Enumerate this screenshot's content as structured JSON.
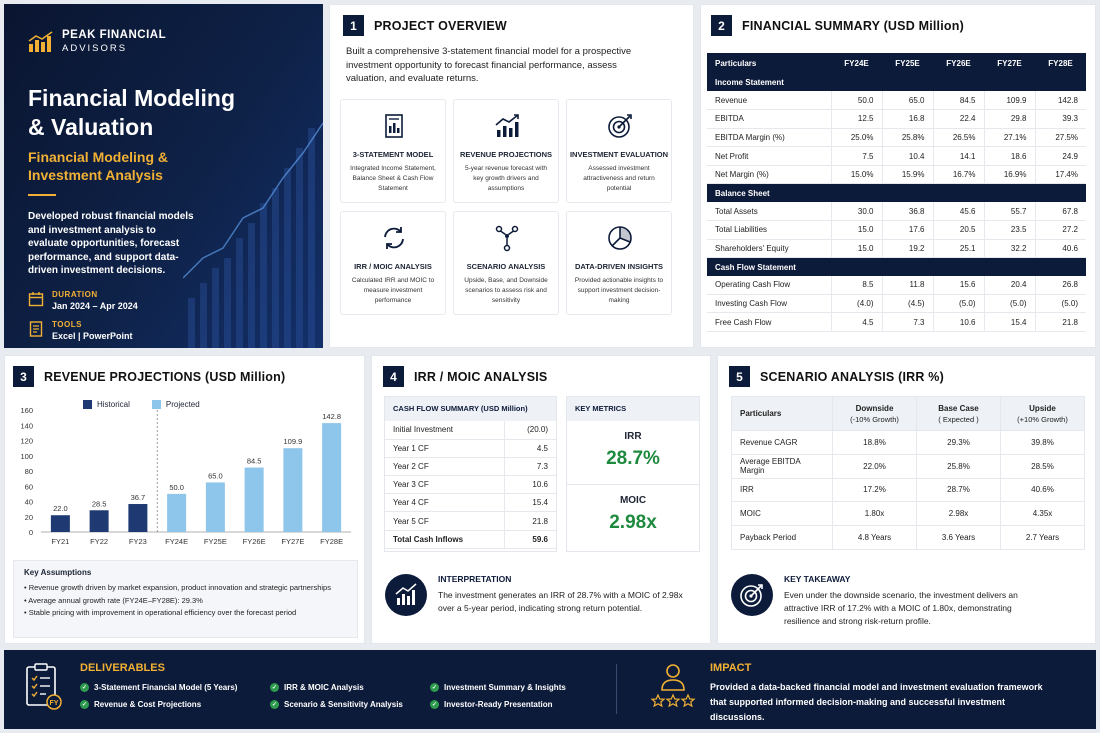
{
  "hero": {
    "brand_line1": "PEAK FINANCIAL",
    "brand_line2": "ADVISORS",
    "title": "Financial Modeling & Valuation",
    "subtitle": "Financial Modeling & Investment Analysis",
    "description": "Developed robust financial models and investment analysis to evaluate opportunities, forecast performance, and support data-driven investment decisions.",
    "duration_label": "DURATION",
    "duration_value": "Jan 2024 – Apr 2024",
    "tools_label": "TOOLS",
    "tools_value": "Excel | PowerPoint"
  },
  "overview": {
    "num": "1",
    "title": "PROJECT OVERVIEW",
    "intro": "Built a comprehensive 3-statement financial model for a prospective investment opportunity to forecast financial performance, assess valuation, and evaluate returns.",
    "cards": [
      {
        "icon": "document-chart-icon",
        "title": "3-STATEMENT MODEL",
        "desc": "Integrated Income Statement, Balance Sheet & Cash Flow Statement"
      },
      {
        "icon": "growth-chart-icon",
        "title": "REVENUE PROJECTIONS",
        "desc": "5-year revenue forecast with key growth drivers and assumptions"
      },
      {
        "icon": "target-icon",
        "title": "INVESTMENT EVALUATION",
        "desc": "Assessed investment attractiveness and return potential"
      },
      {
        "icon": "cycle-arrows-icon",
        "title": "IRR / MOIC ANALYSIS",
        "desc": "Calculated IRR and MOIC to measure investment performance"
      },
      {
        "icon": "branch-icon",
        "title": "SCENARIO ANALYSIS",
        "desc": "Upside, Base, and Downside scenarios to assess risk and sensitivity"
      },
      {
        "icon": "pie-chart-icon",
        "title": "DATA-DRIVEN INSIGHTS",
        "desc": "Provided actionable insights to support investment decision-making"
      }
    ]
  },
  "summary": {
    "num": "2",
    "title": "FINANCIAL SUMMARY (USD Million)",
    "header": [
      "Particulars",
      "FY24E",
      "FY25E",
      "FY26E",
      "FY27E",
      "FY28E"
    ],
    "sections": [
      {
        "name": "Income Statement",
        "rows": [
          [
            "Revenue",
            "50.0",
            "65.0",
            "84.5",
            "109.9",
            "142.8"
          ],
          [
            "EBITDA",
            "12.5",
            "16.8",
            "22.4",
            "29.8",
            "39.3"
          ],
          [
            "EBITDA Margin (%)",
            "25.0%",
            "25.8%",
            "26.5%",
            "27.1%",
            "27.5%"
          ],
          [
            "Net Profit",
            "7.5",
            "10.4",
            "14.1",
            "18.6",
            "24.9"
          ],
          [
            "Net Margin (%)",
            "15.0%",
            "15.9%",
            "16.7%",
            "16.9%",
            "17.4%"
          ]
        ]
      },
      {
        "name": "Balance Sheet",
        "rows": [
          [
            "Total Assets",
            "30.0",
            "36.8",
            "45.6",
            "55.7",
            "67.8"
          ],
          [
            "Total Liabilities",
            "15.0",
            "17.6",
            "20.5",
            "23.5",
            "27.2"
          ],
          [
            "Shareholders' Equity",
            "15.0",
            "19.2",
            "25.1",
            "32.2",
            "40.6"
          ]
        ]
      },
      {
        "name": "Cash Flow Statement",
        "rows": [
          [
            "Operating Cash Flow",
            "8.5",
            "11.8",
            "15.6",
            "20.4",
            "26.8"
          ],
          [
            "Investing Cash Flow",
            "(4.0)",
            "(4.5)",
            "(5.0)",
            "(5.0)",
            "(5.0)"
          ],
          [
            "Free Cash Flow",
            "4.5",
            "7.3",
            "10.6",
            "15.4",
            "21.8"
          ]
        ]
      }
    ]
  },
  "revenue": {
    "num": "3",
    "title": "REVENUE PROJECTIONS (USD Million)",
    "legend_historical": "Historical",
    "legend_projected": "Projected",
    "assumptions_title": "Key Assumptions",
    "assumptions": [
      "Revenue growth driven by market expansion, product innovation and strategic partnerships",
      "Average annual growth rate (FY24E–FY28E): 29.3%",
      "Stable pricing with improvement in operational efficiency over the forecast period"
    ]
  },
  "chart_data": {
    "type": "bar",
    "title": "REVENUE PROJECTIONS (USD Million)",
    "categories": [
      "FY21",
      "FY22",
      "FY23",
      "FY24E",
      "FY25E",
      "FY26E",
      "FY27E",
      "FY28E"
    ],
    "series": [
      {
        "name": "Historical",
        "values": [
          22.0,
          28.5,
          36.7,
          null,
          null,
          null,
          null,
          null
        ],
        "color": "#1f3a73"
      },
      {
        "name": "Projected",
        "values": [
          null,
          null,
          null,
          50.0,
          65.0,
          84.5,
          109.9,
          142.8
        ],
        "color": "#8ec5ea"
      }
    ],
    "value_labels": [
      "22.0",
      "28.5",
      "36.7",
      "50.0",
      "65.0",
      "84.5",
      "109.9",
      "142.8"
    ],
    "yticks": [
      "0",
      "20",
      "40",
      "60",
      "80",
      "100",
      "120",
      "140",
      "160"
    ],
    "ylim": [
      0,
      160
    ],
    "grid": false,
    "legend": "top"
  },
  "irr": {
    "num": "4",
    "title": "IRR / MOIC ANALYSIS",
    "cfs_title": "CASH FLOW SUMMARY (USD Million)",
    "cfs_rows": [
      [
        "Initial Investment",
        "(20.0)"
      ],
      [
        "Year 1 CF",
        "4.5"
      ],
      [
        "Year 2 CF",
        "7.3"
      ],
      [
        "Year 3 CF",
        "10.6"
      ],
      [
        "Year 4 CF",
        "15.4"
      ],
      [
        "Year 5 CF",
        "21.8"
      ]
    ],
    "cfs_total": [
      "Total Cash Inflows",
      "59.6"
    ],
    "metrics_title": "KEY METRICS",
    "irr_label": "IRR",
    "irr_value": "28.7%",
    "moic_label": "MOIC",
    "moic_value": "2.98x",
    "interp_title": "INTERPRETATION",
    "interp_text": "The investment generates an IRR of 28.7% with a MOIC of 2.98x over a 5-year period, indicating strong return potential."
  },
  "scenario": {
    "num": "5",
    "title": "SCENARIO ANALYSIS (IRR %)",
    "col0": "Particulars",
    "cols": [
      {
        "name": "Downside",
        "sub": "(-10% Growth)"
      },
      {
        "name": "Base Case",
        "sub": "( Expected )"
      },
      {
        "name": "Upside",
        "sub": "(+10% Growth)"
      }
    ],
    "rows": [
      [
        "Revenue CAGR",
        "18.8%",
        "29.3%",
        "39.8%"
      ],
      [
        "Average EBITDA Margin",
        "22.0%",
        "25.8%",
        "28.5%"
      ],
      [
        "IRR",
        "17.2%",
        "28.7%",
        "40.6%"
      ],
      [
        "MOIC",
        "1.80x",
        "2.98x",
        "4.35x"
      ],
      [
        "Payback Period",
        "4.8 Years",
        "3.6 Years",
        "2.7 Years"
      ]
    ],
    "takeaway_title": "KEY TAKEAWAY",
    "takeaway_text": "Even under the downside scenario, the investment delivers an attractive IRR of 17.2% with a MOIC of 1.80x, demonstrating resilience and strong risk-return profile."
  },
  "footer": {
    "deliverables_title": "DELIVERABLES",
    "deliverables": [
      "3-Statement Financial Model (5 Years)",
      "Revenue & Cost Projections",
      "IRR & MOIC Analysis",
      "Scenario & Sensitivity Analysis",
      "Investment Summary & Insights",
      "Investor-Ready Presentation"
    ],
    "impact_title": "IMPACT",
    "impact_text": "Provided a data-backed financial model and investment evaluation framework that supported informed decision-making and successful investment discussions."
  },
  "colors": {
    "navy": "#0d1b3a",
    "accent": "#f2b134",
    "green": "#1e8a3e",
    "historical": "#1f3a73",
    "projected": "#8ec5ea"
  }
}
